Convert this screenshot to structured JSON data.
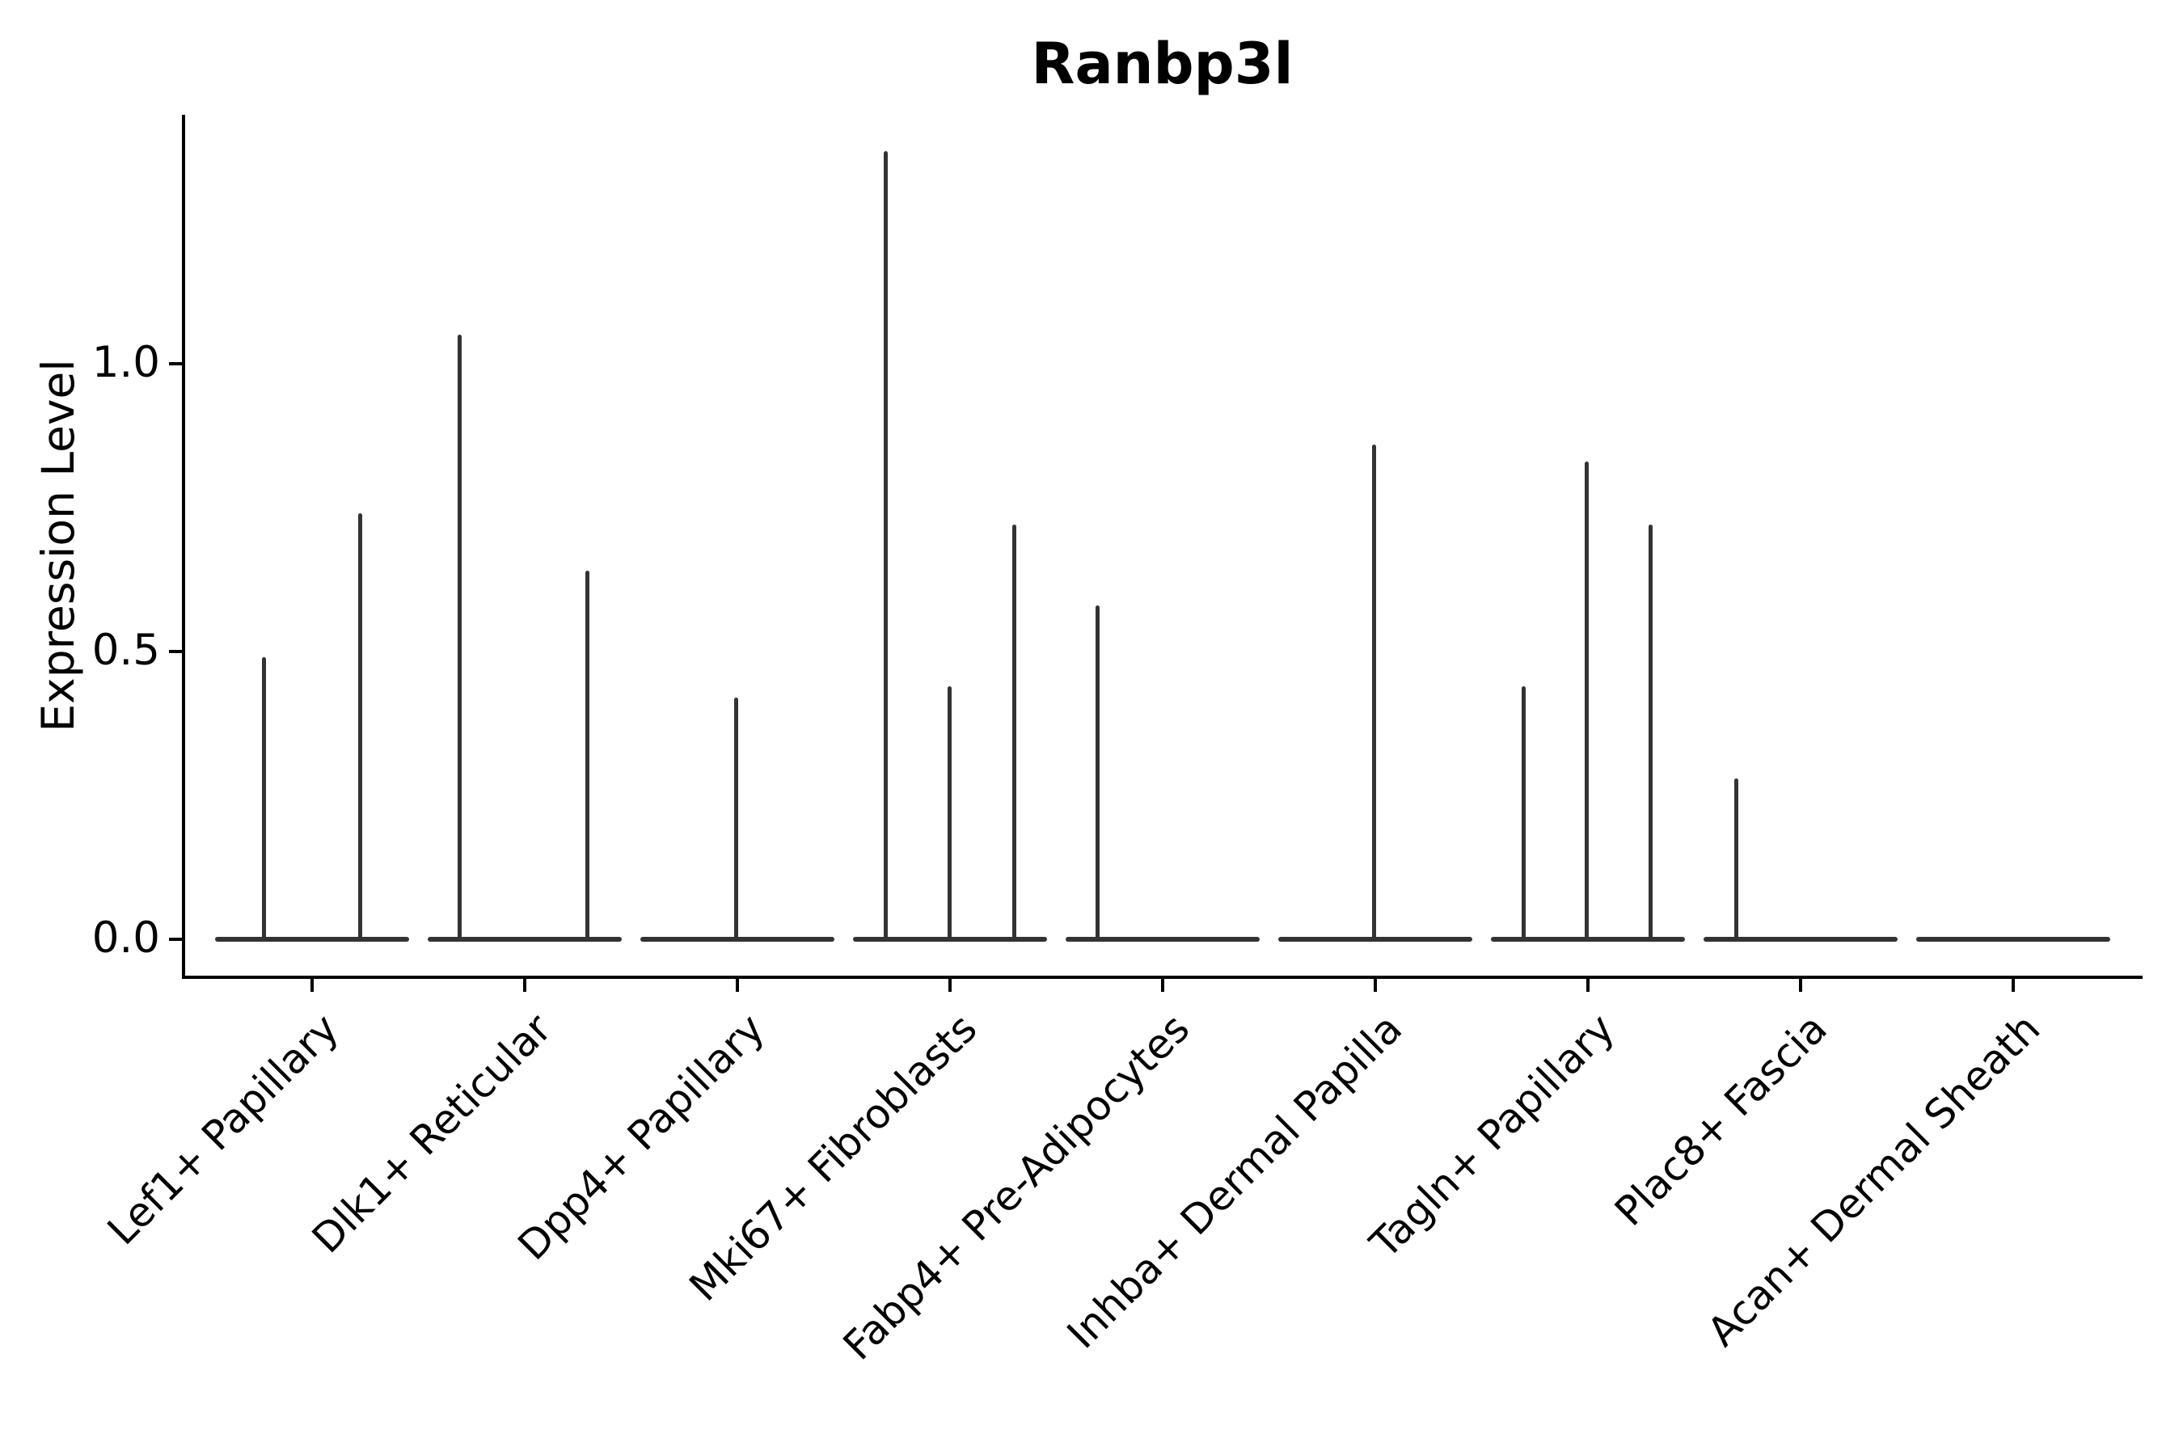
{
  "title": "Ranbp3l",
  "ylabel": "Expression Level",
  "colors": {
    "violin": "#333333",
    "axis": "#000000",
    "background": "#ffffff"
  },
  "chart_data": {
    "type": "violin",
    "title": "Ranbp3l",
    "xlabel": "",
    "ylabel": "Expression Level",
    "ylim": [
      -0.07,
      1.43
    ],
    "grid": false,
    "legend": null,
    "ytick_labels": [
      "1.0",
      "0.5",
      "0.0"
    ],
    "ytick_values": [
      1.0,
      0.5,
      0.0
    ],
    "categories": [
      "Lef1+ Papillary",
      "Dlk1+ Reticular",
      "Dpp4+ Papillary",
      "Mki67+ Fibroblasts",
      "Fabp4+ Pre-Adipocytes",
      "Inhba+ Dermal Papilla",
      "Tagln+ Papillary",
      "Plac8+ Fascia",
      "Acan+ Dermal Sheath"
    ],
    "baseline_value": 0.0,
    "series": [
      {
        "category": "Lef1+ Papillary",
        "spikes": [
          {
            "offset": -60,
            "value": 0.49
          },
          {
            "offset": 59,
            "value": 0.74
          }
        ]
      },
      {
        "category": "Dlk1+ Reticular",
        "spikes": [
          {
            "offset": -81,
            "value": 1.05
          },
          {
            "offset": 77,
            "value": 0.64
          }
        ]
      },
      {
        "category": "Dpp4+ Papillary",
        "spikes": [
          {
            "offset": -2,
            "value": 0.42
          }
        ]
      },
      {
        "category": "Mki67+ Fibroblasts",
        "spikes": [
          {
            "offset": -80,
            "value": 1.37
          },
          {
            "offset": -1,
            "value": 0.44
          },
          {
            "offset": 79,
            "value": 0.72
          }
        ]
      },
      {
        "category": "Fabp4+ Pre-Adipocytes",
        "spikes": [
          {
            "offset": -81,
            "value": 0.58
          }
        ]
      },
      {
        "category": "Inhba+ Dermal Papilla",
        "spikes": [
          {
            "offset": -2,
            "value": 0.86
          }
        ]
      },
      {
        "category": "Tagln+ Papillary",
        "spikes": [
          {
            "offset": -80,
            "value": 0.44
          },
          {
            "offset": -2,
            "value": 0.83
          },
          {
            "offset": 77,
            "value": 0.72
          }
        ]
      },
      {
        "category": "Plac8+ Fascia",
        "spikes": [
          {
            "offset": -80,
            "value": 0.28
          }
        ]
      },
      {
        "category": "Acan+ Dermal Sheath",
        "spikes": []
      }
    ]
  }
}
